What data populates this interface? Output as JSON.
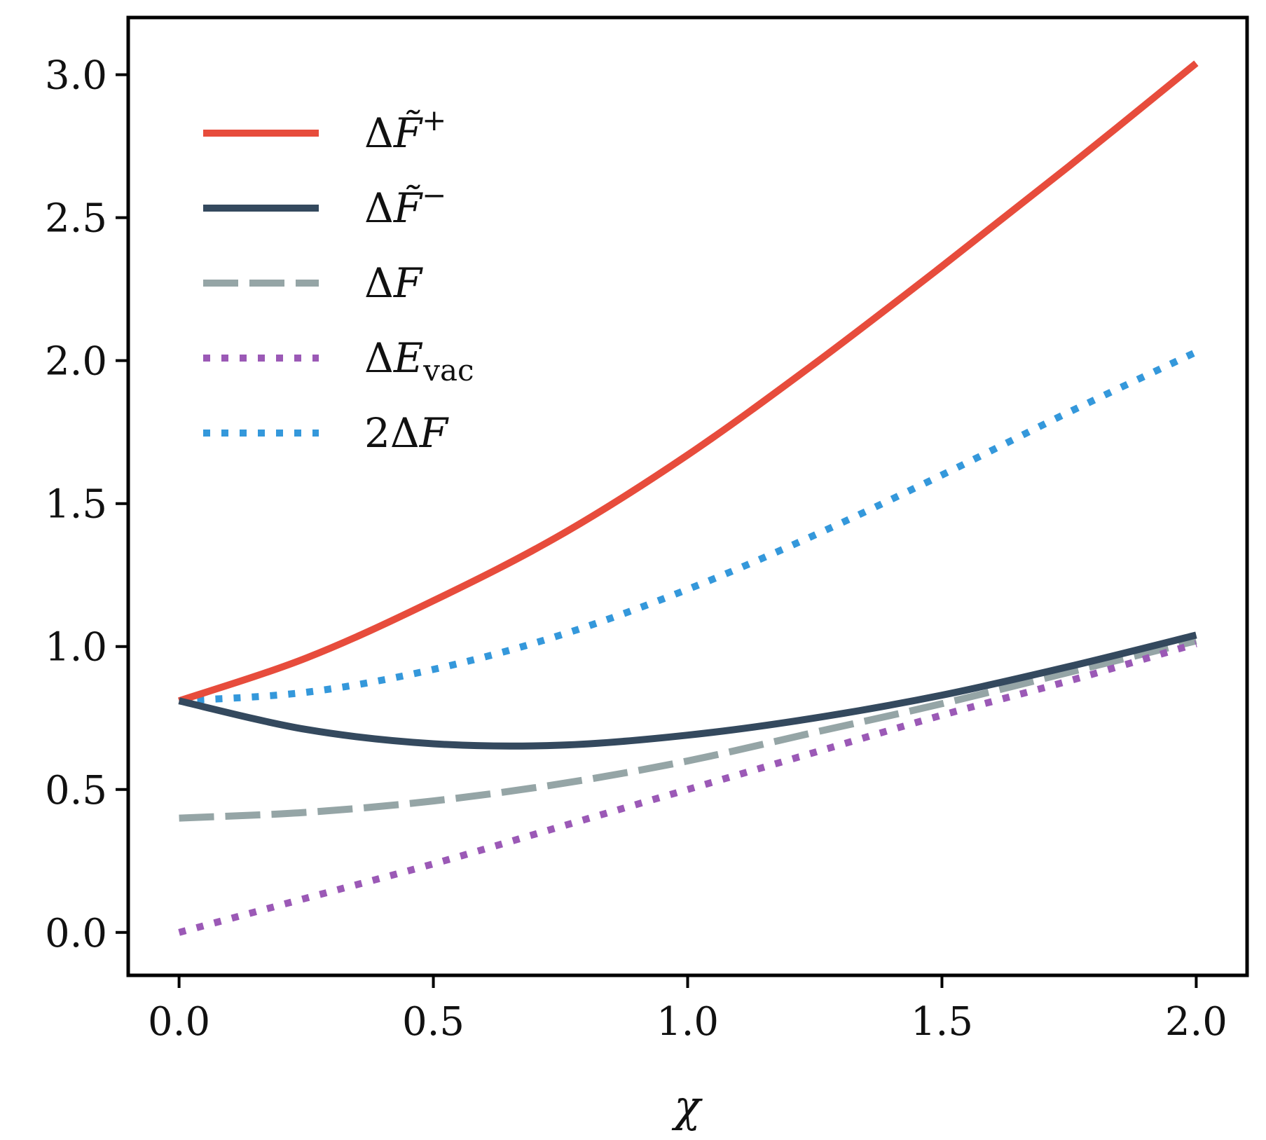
{
  "chart_data": {
    "type": "line",
    "title": "",
    "xlabel": "χ",
    "ylabel": "",
    "xlim": [
      -0.1,
      2.1
    ],
    "ylim": [
      -0.15,
      3.2
    ],
    "xticks": [
      0.0,
      0.5,
      1.0,
      1.5,
      2.0
    ],
    "xtick_labels": [
      "0.0",
      "0.5",
      "1.0",
      "1.5",
      "2.0"
    ],
    "yticks": [
      0.0,
      0.5,
      1.0,
      1.5,
      2.0,
      2.5,
      3.0
    ],
    "ytick_labels": [
      "0.0",
      "0.5",
      "1.0",
      "1.5",
      "2.0",
      "2.5",
      "3.0"
    ],
    "grid": false,
    "legend_position": "upper-left",
    "series": [
      {
        "name": "ΔF̃⁺",
        "legend": {
          "base": "Δ",
          "var": "F̃",
          "sup": "+",
          "sub": "",
          "prefix": ""
        },
        "color": "#e74c3c",
        "style": "solid",
        "x": [
          0.0,
          0.25,
          0.5,
          0.75,
          1.0,
          1.25,
          1.5,
          1.75,
          2.0
        ],
        "y": [
          0.81,
          0.96,
          1.16,
          1.39,
          1.67,
          1.99,
          2.33,
          2.68,
          3.04
        ]
      },
      {
        "name": "ΔF̃⁻",
        "legend": {
          "base": "Δ",
          "var": "F̃",
          "sup": "−",
          "sub": "",
          "prefix": ""
        },
        "color": "#34495e",
        "style": "solid",
        "x": [
          0.0,
          0.25,
          0.5,
          0.75,
          1.0,
          1.25,
          1.5,
          1.75,
          2.0
        ],
        "y": [
          0.81,
          0.71,
          0.66,
          0.655,
          0.69,
          0.75,
          0.83,
          0.93,
          1.04
        ]
      },
      {
        "name": "ΔF",
        "legend": {
          "base": "Δ",
          "var": "F",
          "sup": "",
          "sub": "",
          "prefix": ""
        },
        "color": "#95a5a6",
        "style": "dashed",
        "x": [
          0.0,
          0.25,
          0.5,
          0.75,
          1.0,
          1.25,
          1.5,
          1.75,
          2.0
        ],
        "y": [
          0.4,
          0.42,
          0.46,
          0.52,
          0.6,
          0.7,
          0.8,
          0.91,
          1.02
        ]
      },
      {
        "name": "ΔE_vac",
        "legend": {
          "base": "Δ",
          "var": "E",
          "sup": "",
          "sub": "vac",
          "prefix": ""
        },
        "color": "#9b59b6",
        "style": "dotted",
        "x": [
          0.0,
          0.25,
          0.5,
          0.75,
          1.0,
          1.25,
          1.5,
          1.75,
          2.0
        ],
        "y": [
          0.0,
          0.12,
          0.24,
          0.37,
          0.5,
          0.63,
          0.76,
          0.88,
          1.01
        ]
      },
      {
        "name": "2ΔF",
        "legend": {
          "base": "Δ",
          "var": "F",
          "sup": "",
          "sub": "",
          "prefix": "2"
        },
        "color": "#3498db",
        "style": "dotted",
        "x": [
          0.0,
          0.25,
          0.5,
          0.75,
          1.0,
          1.25,
          1.5,
          1.75,
          2.0
        ],
        "y": [
          0.81,
          0.84,
          0.92,
          1.04,
          1.2,
          1.39,
          1.6,
          1.82,
          2.03
        ]
      }
    ]
  }
}
